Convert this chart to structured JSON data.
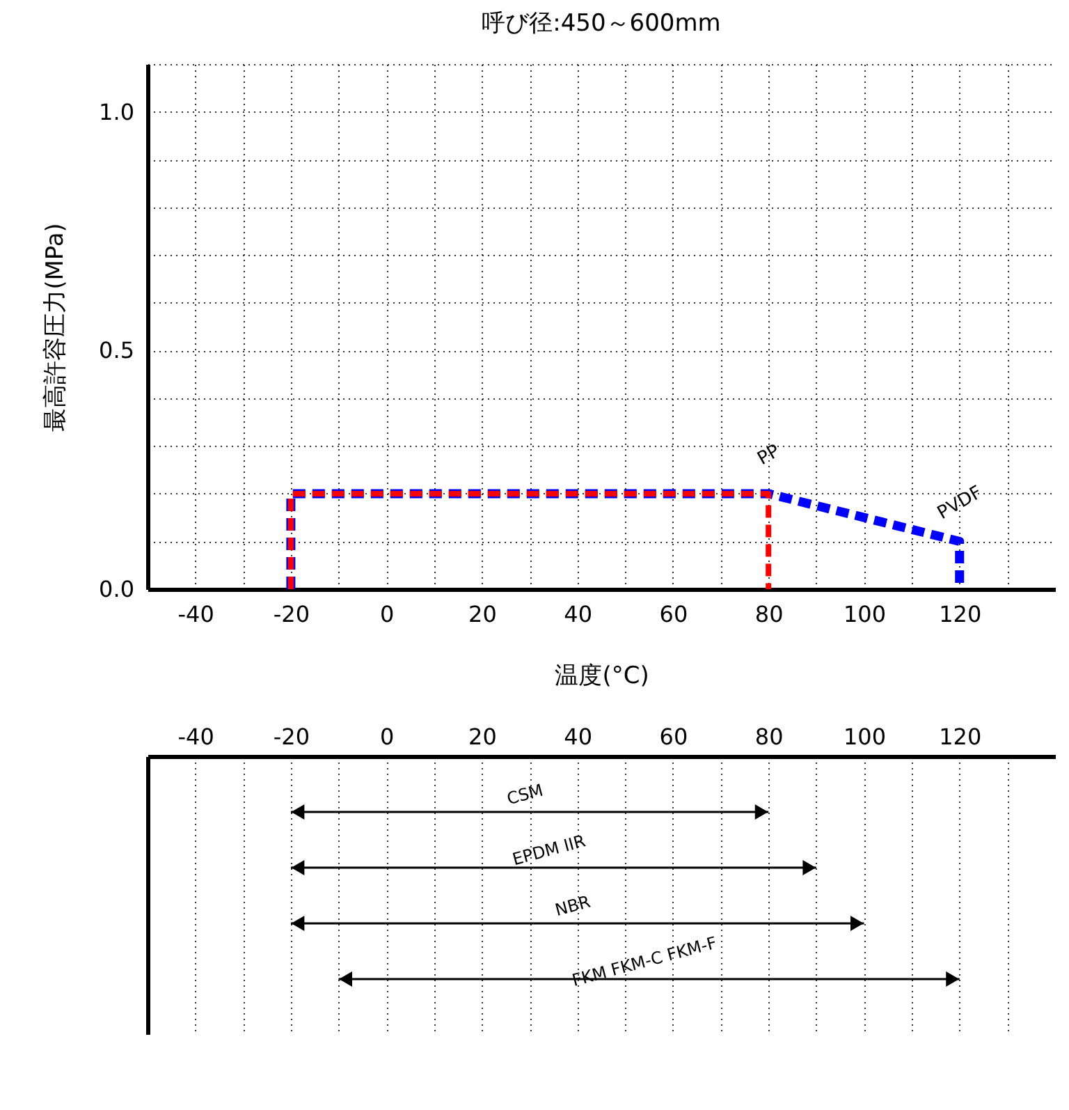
{
  "chart_data": [
    {
      "type": "line",
      "title": "呼び径:450～600mm",
      "xlabel": "温度(°C)",
      "ylabel": "最高許容圧力(MPa)",
      "series": [
        {
          "name": "PVDF",
          "color": "#0000ff",
          "line_style": "dashed",
          "x": [
            -20,
            -20,
            80,
            120,
            120
          ],
          "values": [
            0,
            0.2,
            0.2,
            0.1,
            0
          ]
        },
        {
          "name": "PP",
          "color": "#ff0000",
          "line_style": "dashed",
          "x": [
            -20,
            -20,
            80,
            80
          ],
          "values": [
            0,
            0.2,
            0.2,
            0
          ]
        }
      ],
      "xlim": [
        -50,
        140
      ],
      "xticks": [
        {
          "value": -50,
          "label": null
        },
        -40,
        {
          "value": -30,
          "label": null
        },
        -20,
        {
          "value": -10,
          "label": null
        },
        0,
        {
          "value": 10,
          "label": null
        },
        20,
        {
          "value": 30,
          "label": null
        },
        40,
        {
          "value": 50,
          "label": null
        },
        60,
        {
          "value": 70,
          "label": null
        },
        80,
        {
          "value": 90,
          "label": null
        },
        100,
        {
          "value": 110,
          "label": null
        },
        120,
        {
          "value": 130,
          "label": null
        }
      ],
      "ylim": [
        0,
        1.1
      ],
      "yticks": [
        {
          "value": 0,
          "label": "0.0"
        },
        {
          "value": 0.1,
          "label": null
        },
        {
          "value": 0.2,
          "label": null
        },
        {
          "value": 0.3,
          "label": null
        },
        {
          "value": 0.4,
          "label": null
        },
        {
          "value": 0.5,
          "label": "0.5"
        },
        {
          "value": 0.6,
          "label": null
        },
        {
          "value": 0.7,
          "label": null
        },
        {
          "value": 0.8,
          "label": null
        },
        {
          "value": 0.9,
          "label": null
        },
        {
          "value": 1.0,
          "label": "1.0"
        },
        {
          "value": 1.1,
          "label": null
        }
      ],
      "grid": true,
      "legend": false
    },
    {
      "type": "bar",
      "orientation": "horizontal",
      "categories": [
        "CSM",
        "EPDM IIR",
        "NBR",
        "FKM FKM-C FKM-F"
      ],
      "base": [
        -20,
        -20,
        -20,
        -10
      ],
      "values": [
        100,
        110,
        120,
        130
      ],
      "color": "#000000",
      "xlim": [
        -50,
        140
      ],
      "xticks": [
        {
          "value": -50,
          "label": null
        },
        -40,
        {
          "value": -30,
          "label": null
        },
        -20,
        {
          "value": -10,
          "label": null
        },
        0,
        {
          "value": 10,
          "label": null
        },
        20,
        {
          "value": 30,
          "label": null
        },
        40,
        {
          "value": 50,
          "label": null
        },
        60,
        {
          "value": 70,
          "label": null
        },
        80,
        {
          "value": 90,
          "label": null
        },
        100,
        {
          "value": 110,
          "label": null
        },
        120,
        {
          "value": 130,
          "label": null
        }
      ],
      "grid": "x",
      "tick_labels": "x"
    }
  ]
}
